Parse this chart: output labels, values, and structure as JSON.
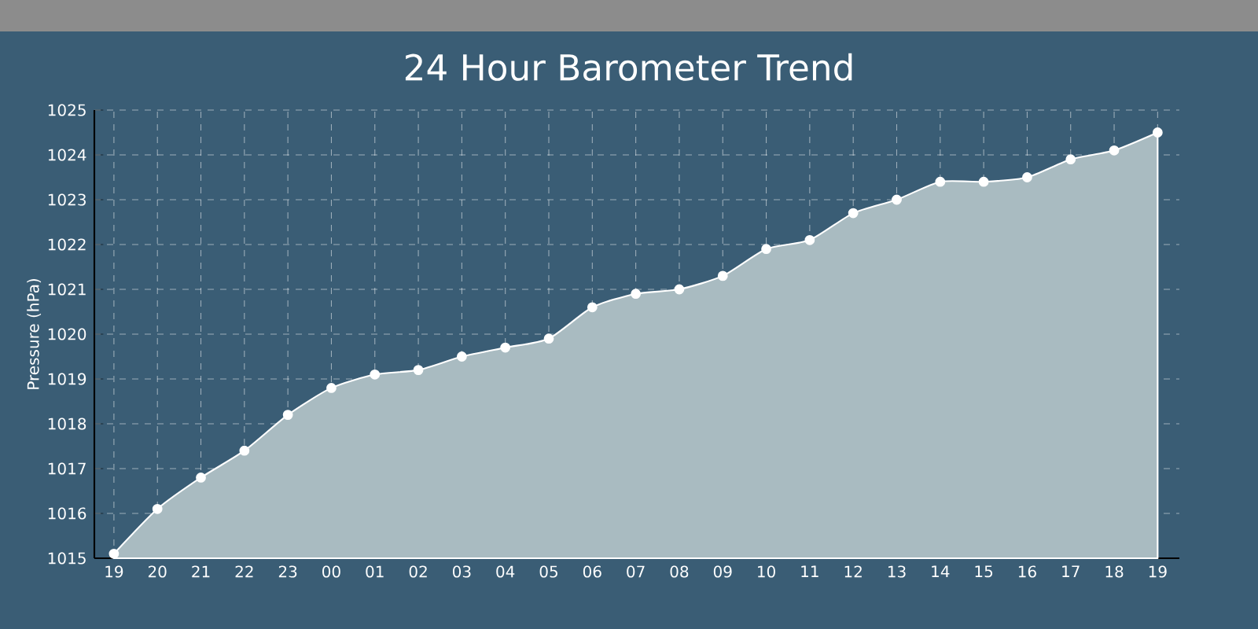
{
  "chart_data": {
    "type": "area",
    "title": "24 Hour Barometer Trend",
    "ylabel": "Pressure (hPa)",
    "categories": [
      "19",
      "20",
      "21",
      "22",
      "23",
      "00",
      "01",
      "02",
      "03",
      "04",
      "05",
      "06",
      "07",
      "08",
      "09",
      "10",
      "11",
      "12",
      "13",
      "14",
      "15",
      "16",
      "17",
      "18",
      "19"
    ],
    "series": [
      {
        "color": "#a9bbc1",
        "values": [
          1015.1,
          1016.1,
          1016.8,
          1017.4,
          1018.2,
          1018.8,
          1019.1,
          1019.2,
          1019.5,
          1019.7,
          1019.9,
          1020.6,
          1020.9,
          1021.0,
          1021.3,
          1021.9,
          1022.1,
          1022.7,
          1023.0,
          1023.4,
          1023.4,
          1023.5,
          1023.9,
          1024.1,
          1024.5
        ]
      }
    ],
    "ylim": [
      1015,
      1025
    ],
    "yticks": [
      1015,
      1016,
      1017,
      1018,
      1019,
      1020,
      1021,
      1022,
      1023,
      1024,
      1025
    ],
    "grid": true,
    "marker": "circle"
  }
}
